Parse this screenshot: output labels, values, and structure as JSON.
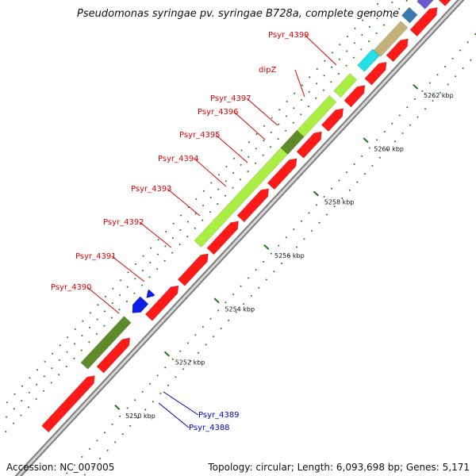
{
  "title": "Pseudomonas syringae pv. syringae B728a, complete genome",
  "footer": {
    "accession": "Accession: NC_007005",
    "summary": "Topology: circular; Length: 6,093,698 bp; Genes: 5,171"
  },
  "colors": {
    "red": "#ff1a1a",
    "blue": "#0a1ee6",
    "lime": "#aaee44",
    "dark_green": "#5e8a2a",
    "cyan": "#22e0e6",
    "tan": "#c2b27a",
    "steel_blue": "#3a78b0",
    "purple": "#6a5acd",
    "pink": "#f2a0a0",
    "backbone": "#9a9a9a",
    "label_red": "#e00000",
    "label_blue": "#0000cc",
    "tick_green": "#1a7a1a"
  },
  "ticks": [
    {
      "label": "5250 kbp"
    },
    {
      "label": "5252 kbp"
    },
    {
      "label": "5254 kbp"
    },
    {
      "label": "5256 kbp"
    },
    {
      "label": "5258 kbp"
    },
    {
      "label": "5260 kbp"
    },
    {
      "label": "5262 kbp"
    }
  ],
  "gene_labels": [
    {
      "name": "Psyr_4399",
      "color": "red"
    },
    {
      "name": "dipZ",
      "color": "red"
    },
    {
      "name": "Psyr_4397",
      "color": "red"
    },
    {
      "name": "Psyr_4396",
      "color": "red"
    },
    {
      "name": "Psyr_4395",
      "color": "red"
    },
    {
      "name": "Psyr_4394",
      "color": "red"
    },
    {
      "name": "Psyr_4393",
      "color": "red"
    },
    {
      "name": "Psyr_4392",
      "color": "red"
    },
    {
      "name": "Psyr_4391",
      "color": "red"
    },
    {
      "name": "Psyr_4390",
      "color": "red"
    },
    {
      "name": "Psyr_4389",
      "color": "blue"
    },
    {
      "name": "Psyr_4388",
      "color": "blue"
    }
  ]
}
